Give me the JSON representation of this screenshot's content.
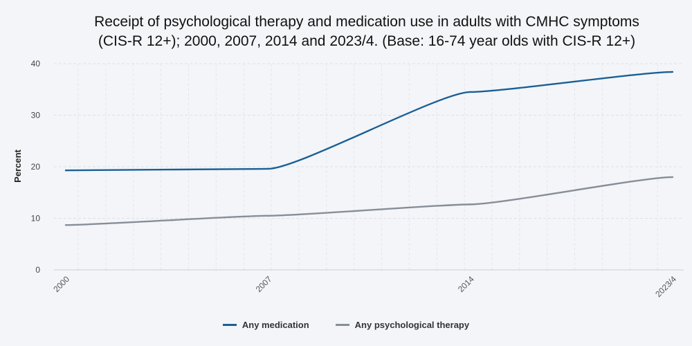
{
  "chart_data": {
    "type": "line",
    "title_lines": [
      "Receipt of psychological therapy and medication use in adults with CMHC symptoms",
      "(CIS-R 12+); 2000, 2007, 2014 and 2023/4. (Base: 16-74 year olds with CIS-R 12+)"
    ],
    "xlabel": "",
    "ylabel": "Percent",
    "categories": [
      "2000",
      "2007",
      "2014",
      "2023/4"
    ],
    "ylim": [
      0,
      40
    ],
    "yticks": [
      0,
      10,
      20,
      30,
      40
    ],
    "grid": true,
    "legend_position": "bottom",
    "series": [
      {
        "name": "Any medication",
        "color": "#1a5f96",
        "values": [
          19.3,
          19.6,
          34.5,
          38.4
        ]
      },
      {
        "name": "Any psychological therapy",
        "color": "#878e97",
        "values": [
          8.7,
          10.5,
          12.7,
          18.0
        ]
      }
    ]
  }
}
